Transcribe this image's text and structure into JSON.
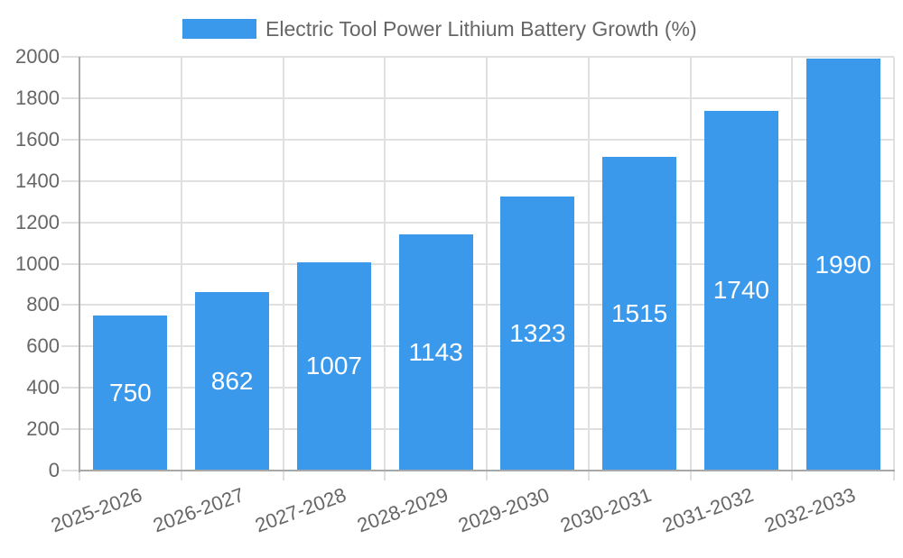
{
  "legend": {
    "position": "top-center"
  },
  "chart_data": {
    "type": "bar",
    "title": "Electric Tool Power Lithium Battery Growth (%)",
    "categories": [
      "2025-2026",
      "2026-2027",
      "2027-2028",
      "2028-2029",
      "2029-2030",
      "2030-2031",
      "2031-2032",
      "2032-2033"
    ],
    "values": [
      750,
      862,
      1007,
      1143,
      1323,
      1515,
      1740,
      1990
    ],
    "xlabel": "",
    "ylabel": "",
    "ylim": [
      0,
      2000
    ],
    "yticks": [
      0,
      200,
      400,
      600,
      800,
      1000,
      1200,
      1400,
      1600,
      1800,
      2000
    ],
    "grid": true,
    "legend_position": "top-center",
    "bar_color": "#3B99EC",
    "bar_label_color": "#ffffff",
    "axis_text_color": "#666666",
    "gridline_color": "#e0e0e0",
    "axis_line_color": "#a8a8a8",
    "x_label_rotation_deg": -20
  }
}
